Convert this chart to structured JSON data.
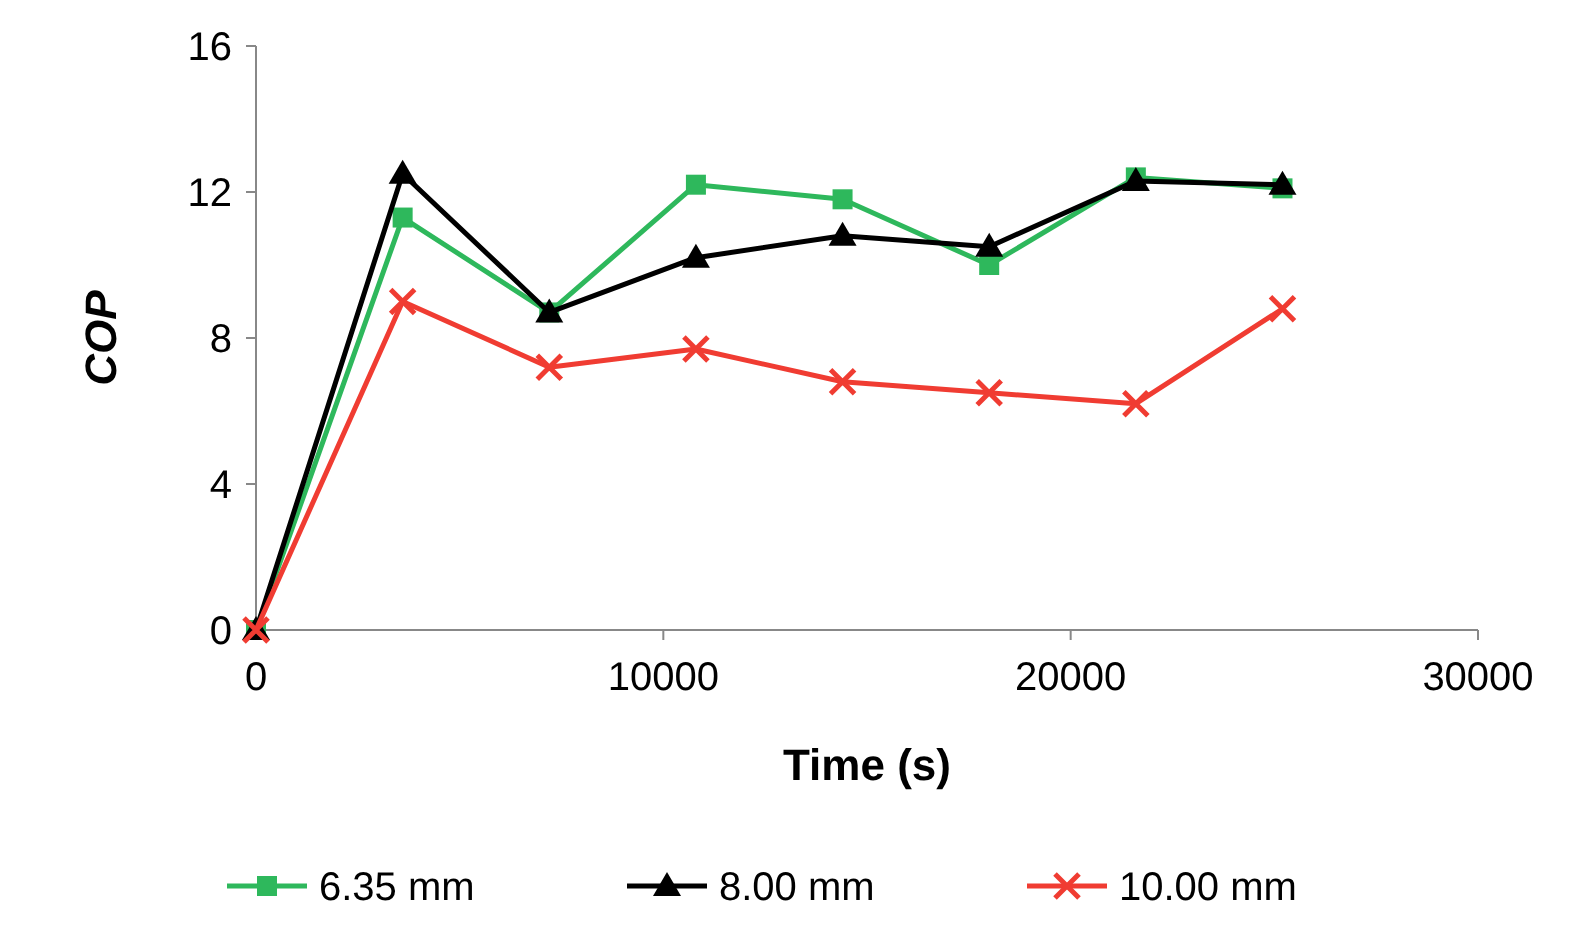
{
  "chart_data": {
    "type": "line",
    "xlabel": "Time (s)",
    "ylabel": "COP",
    "x": [
      0,
      3600,
      7200,
      10800,
      14400,
      18000,
      21600,
      25200
    ],
    "series": [
      {
        "name": "6.35 mm",
        "color": "#2eb85c",
        "marker": "square",
        "values": [
          0,
          11.3,
          8.7,
          12.2,
          11.8,
          10.0,
          12.4,
          12.1
        ]
      },
      {
        "name": "8.00 mm",
        "color": "#000000",
        "marker": "triangle",
        "values": [
          0,
          12.5,
          8.7,
          10.2,
          10.8,
          10.5,
          12.3,
          12.2
        ]
      },
      {
        "name": "10.00 mm",
        "color": "#f03c32",
        "marker": "cross",
        "values": [
          0,
          9.0,
          7.2,
          7.7,
          6.8,
          6.5,
          6.2,
          8.8
        ]
      }
    ],
    "xlim": [
      0,
      30000
    ],
    "xticks": [
      0,
      10000,
      20000,
      30000
    ],
    "ylim": [
      0,
      16
    ],
    "yticks": [
      0,
      4,
      8,
      12,
      16
    ],
    "grid": false,
    "legend": "bottom"
  }
}
